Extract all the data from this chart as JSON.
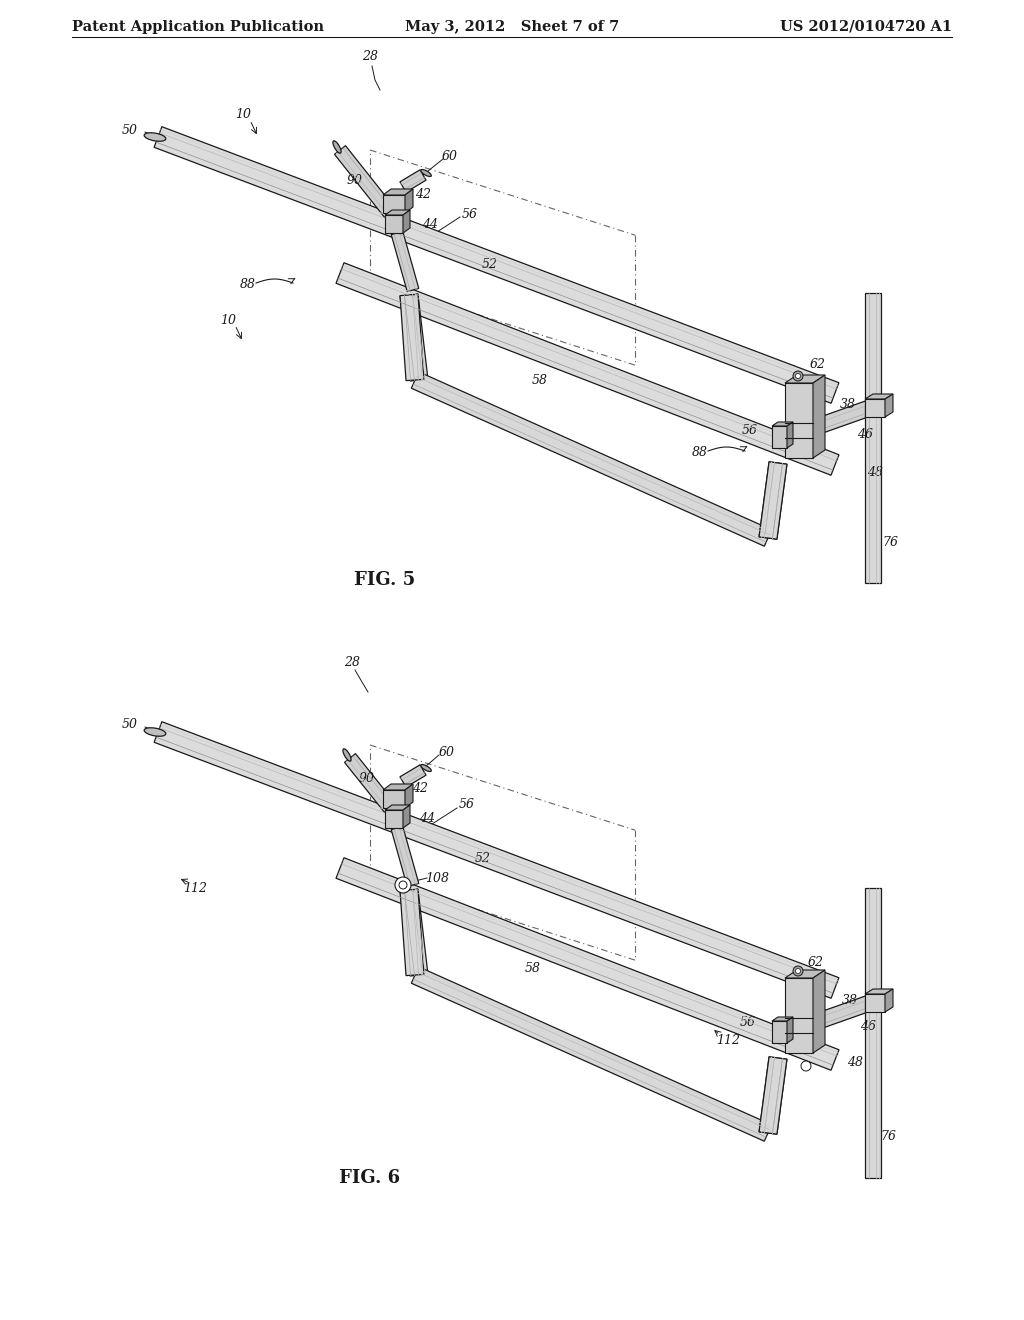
{
  "background_color": "#ffffff",
  "line_color": "#1a1a1a",
  "dash_color": "#666666",
  "label_font_size": 9,
  "title_font_size": 13,
  "header": {
    "left": "Patent Application Publication",
    "center": "May 3, 2012   Sheet 7 of 7",
    "right": "US 2012/0104720 A1",
    "font_size": 10.5
  },
  "fig5_label": "FIG. 5",
  "fig6_label": "FIG. 6",
  "shading_color": "#c8c8c8",
  "shading_dark": "#888888",
  "shading_mid": "#b0b0b0"
}
